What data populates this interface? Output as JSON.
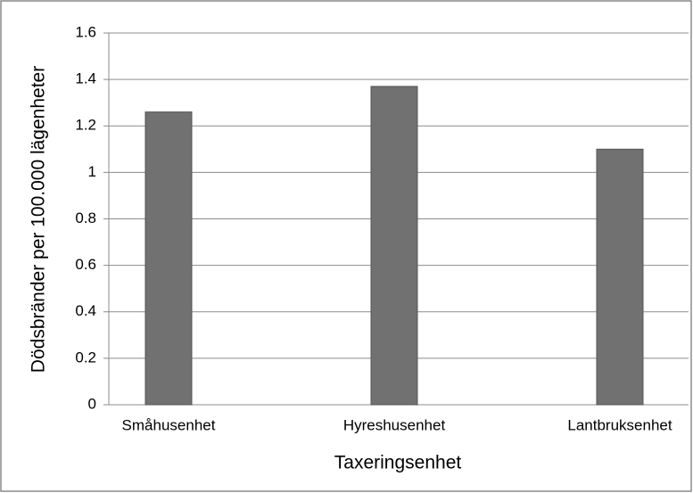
{
  "chart_data": {
    "type": "bar",
    "x_label": "Taxeringsenhet",
    "y_label": "Dödsbränder per 100.000 lägenheter",
    "categories": [
      "Småhusenhet",
      "Hyreshusenhet",
      "Lantbruksenhet"
    ],
    "values": [
      1.26,
      1.37,
      1.1
    ],
    "color": "#717171",
    "ylim": [
      0,
      1.6
    ],
    "yticks": [
      0,
      0.2,
      0.4,
      0.6,
      0.8,
      1,
      1.2,
      1.4,
      1.6
    ],
    "grid": true
  }
}
